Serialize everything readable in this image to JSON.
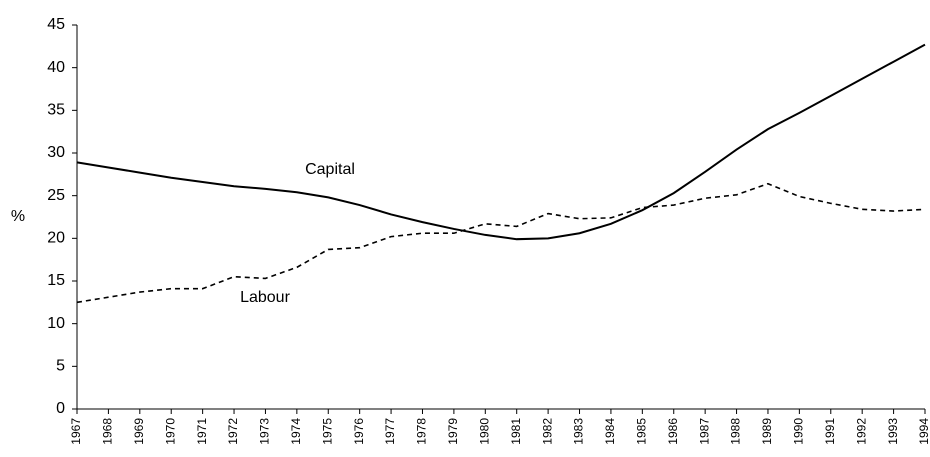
{
  "chart_data": {
    "type": "line",
    "y_label": "%",
    "categories": [
      "1967",
      "1968",
      "1969",
      "1970",
      "1971",
      "1972",
      "1973",
      "1974",
      "1975",
      "1976",
      "1977",
      "1978",
      "1979",
      "1980",
      "1981",
      "1982",
      "1983",
      "1984",
      "1985",
      "1986",
      "1987",
      "1988",
      "1989",
      "1990",
      "1991",
      "1992",
      "1993",
      "1994"
    ],
    "series": [
      {
        "name": "Capital",
        "color": "#000000",
        "dashed": false,
        "values": [
          28.9,
          28.3,
          27.7,
          27.1,
          26.6,
          26.1,
          25.8,
          25.4,
          24.8,
          23.9,
          22.8,
          21.9,
          21.1,
          20.4,
          19.9,
          20.0,
          20.6,
          21.7,
          23.3,
          25.3,
          27.8,
          30.4,
          32.8,
          34.7,
          36.7,
          38.7,
          40.7,
          42.7
        ]
      },
      {
        "name": "Labour",
        "color": "#000000",
        "dashed": true,
        "values": [
          12.5,
          13.1,
          13.7,
          14.1,
          14.1,
          15.5,
          15.3,
          16.6,
          18.7,
          18.9,
          20.2,
          20.6,
          20.6,
          21.7,
          21.4,
          22.9,
          22.3,
          22.4,
          23.6,
          23.9,
          24.7,
          25.1,
          26.4,
          24.9,
          24.1,
          23.4,
          23.2,
          23.4
        ]
      }
    ],
    "ylim": [
      0,
      45
    ],
    "yticks": [
      0,
      5,
      10,
      15,
      20,
      25,
      30,
      35,
      40,
      45
    ],
    "grid": false
  }
}
